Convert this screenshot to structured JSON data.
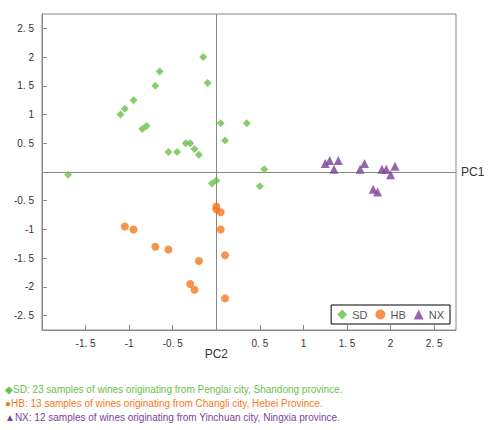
{
  "chart_data": {
    "type": "scatter",
    "series": [
      {
        "name": "SD",
        "color": "#6abf4b",
        "marker": "diamond",
        "x": [
          -1.7,
          -1.1,
          -1.05,
          -0.95,
          -0.85,
          -0.8,
          -0.7,
          -0.65,
          -0.55,
          -0.45,
          -0.35,
          -0.3,
          -0.25,
          -0.2,
          -0.15,
          -0.1,
          -0.05,
          0.0,
          0.05,
          0.1,
          0.35,
          0.5,
          0.55
        ],
        "values": [
          -0.05,
          1.0,
          1.1,
          1.25,
          0.75,
          0.8,
          1.5,
          1.75,
          0.35,
          0.35,
          0.5,
          0.5,
          0.4,
          0.3,
          2.0,
          1.55,
          -0.2,
          -0.15,
          0.85,
          0.55,
          0.85,
          -0.25,
          0.05
        ]
      },
      {
        "name": "HB",
        "color": "#f47920",
        "marker": "circle",
        "x": [
          -1.05,
          -0.95,
          -0.7,
          -0.55,
          -0.3,
          -0.25,
          -0.2,
          0.0,
          0.0,
          0.05,
          0.1,
          0.1,
          0.05
        ],
        "values": [
          -0.95,
          -1.0,
          -1.3,
          -1.35,
          -1.95,
          -2.05,
          -1.55,
          -0.6,
          -0.65,
          -1.0,
          -1.45,
          -2.2,
          -0.7
        ]
      },
      {
        "name": "NX",
        "color": "#7b3f9e",
        "marker": "triangle",
        "x": [
          1.25,
          1.3,
          1.35,
          1.4,
          1.65,
          1.7,
          1.8,
          1.85,
          1.9,
          1.95,
          2.0,
          2.05
        ],
        "values": [
          0.15,
          0.2,
          0.05,
          0.2,
          0.05,
          0.15,
          -0.3,
          -0.35,
          0.05,
          0.05,
          -0.05,
          0.1
        ]
      }
    ],
    "xlabel": "PC1",
    "ylabel": "PC2",
    "xlim": [
      -2.0,
      2.75
    ],
    "ylim": [
      -2.75,
      2.75
    ],
    "xticks": [
      {
        "value": -1.5,
        "label": "-1. 5"
      },
      -1,
      {
        "value": -0.5,
        "label": "-0. 5"
      },
      {
        "value": 0.5,
        "label": "0. 5"
      },
      1,
      {
        "value": 1.5,
        "label": "1. 5"
      },
      2,
      {
        "value": 2.5,
        "label": "2. 5"
      }
    ],
    "yticks": [
      {
        "value": -2.5,
        "label": "-2. 5"
      },
      -2,
      {
        "value": -1.5,
        "label": "-1. 5"
      },
      -1,
      {
        "value": -0.5,
        "label": "-0. 5"
      },
      {
        "value": 0.5,
        "label": "0. 5"
      },
      1,
      {
        "value": 1.5,
        "label": "1. 5"
      },
      2,
      {
        "value": 2.5,
        "label": "2. 5"
      }
    ],
    "annotations": [
      "◆SD: 23 samples of wines originating from Penglai city, Shandong province.",
      "●HB: 13 samples of wines originating from Changli city, Hebei Province.",
      "▲NX: 12 samples of wines originating from Yinchuan city, Ningxia province."
    ],
    "legend": "lower right",
    "grid": false
  }
}
